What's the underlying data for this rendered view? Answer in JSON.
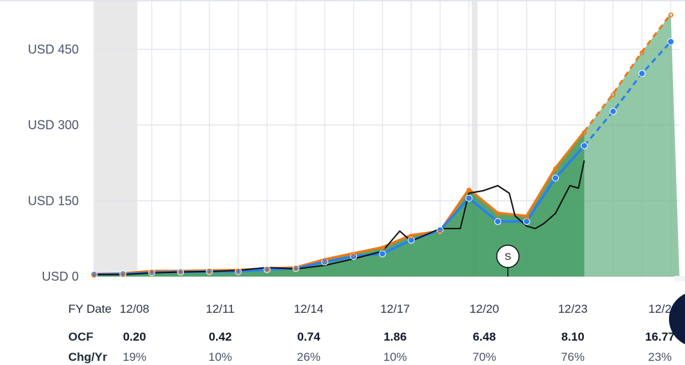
{
  "chart_data": {
    "type": "area",
    "y_axis": {
      "ticks": [
        0,
        150,
        300,
        450
      ],
      "tick_labels": [
        "USD 0",
        "USD 150",
        "USD 300",
        "USD 450"
      ],
      "range": [
        0,
        520
      ]
    },
    "x_axis": {
      "range": [
        2007,
        2027.3
      ]
    },
    "recession_bands": [
      [
        2007.0,
        2008.5
      ],
      [
        2020.1,
        2020.3
      ]
    ],
    "series": [
      {
        "key": "fair_value_orange",
        "color": "#ea7a1a",
        "points": [
          [
            2007,
            5
          ],
          [
            2008,
            6
          ],
          [
            2009,
            11
          ],
          [
            2010,
            11
          ],
          [
            2011,
            12
          ],
          [
            2012,
            13
          ],
          [
            2013,
            16
          ],
          [
            2014,
            18
          ],
          [
            2015,
            34
          ],
          [
            2016,
            46
          ],
          [
            2017,
            58
          ],
          [
            2018,
            82
          ],
          [
            2019,
            90
          ],
          [
            2020,
            173
          ],
          [
            2021,
            126
          ],
          [
            2022,
            120
          ],
          [
            2023,
            215
          ],
          [
            2024,
            287
          ]
        ],
        "estimates": [
          [
            2024,
            287
          ],
          [
            2025,
            362
          ],
          [
            2026,
            445
          ],
          [
            2027,
            520
          ]
        ]
      },
      {
        "key": "normal_blue",
        "color": "#2a7ff0",
        "points": [
          [
            2007,
            4
          ],
          [
            2008,
            5
          ],
          [
            2009,
            8
          ],
          [
            2010,
            9
          ],
          [
            2011,
            10
          ],
          [
            2012,
            10
          ],
          [
            2013,
            14
          ],
          [
            2014,
            16
          ],
          [
            2015,
            29
          ],
          [
            2016,
            40
          ],
          [
            2017,
            45
          ],
          [
            2018,
            72
          ],
          [
            2019,
            92
          ],
          [
            2020,
            155
          ],
          [
            2021,
            109
          ],
          [
            2022,
            109
          ],
          [
            2023,
            195
          ],
          [
            2024,
            259
          ]
        ],
        "estimates": [
          [
            2024,
            259
          ],
          [
            2025,
            327
          ],
          [
            2026,
            402
          ],
          [
            2027,
            465
          ]
        ]
      },
      {
        "key": "price_black",
        "color": "#111111",
        "points": [
          [
            2007,
            4
          ],
          [
            2008,
            4
          ],
          [
            2009,
            7
          ],
          [
            2010,
            9
          ],
          [
            2011,
            10
          ],
          [
            2012,
            12
          ],
          [
            2013,
            18
          ],
          [
            2014,
            15
          ],
          [
            2015,
            22
          ],
          [
            2016,
            35
          ],
          [
            2017,
            50
          ],
          [
            2017.6,
            90
          ],
          [
            2018,
            70
          ],
          [
            2019,
            95
          ],
          [
            2019.7,
            95
          ],
          [
            2020,
            165
          ],
          [
            2020.5,
            170
          ],
          [
            2021,
            180
          ],
          [
            2021.4,
            165
          ],
          [
            2021.6,
            120
          ],
          [
            2022,
            100
          ],
          [
            2022.3,
            95
          ],
          [
            2022.6,
            105
          ],
          [
            2023,
            125
          ],
          [
            2023.5,
            180
          ],
          [
            2023.8,
            175
          ],
          [
            2024,
            230
          ]
        ]
      }
    ],
    "marker_s": {
      "x": 2021.35,
      "label": "S"
    },
    "table": {
      "row_labels": [
        "FY Date",
        "OCF",
        "Chg/Yr"
      ],
      "columns": [
        {
          "date": "12/08",
          "ocf": "0.20",
          "chg": "19%"
        },
        {
          "date": "12/11",
          "ocf": "0.42",
          "chg": "10%"
        },
        {
          "date": "12/14",
          "ocf": "0.74",
          "chg": "26%"
        },
        {
          "date": "12/17",
          "ocf": "1.86",
          "chg": "10%"
        },
        {
          "date": "12/20",
          "ocf": "6.48",
          "chg": "70%"
        },
        {
          "date": "12/23",
          "ocf": "8.10",
          "chg": "76%"
        },
        {
          "date": "12/2",
          "ocf": "16.77",
          "chg": "23%"
        }
      ]
    },
    "grid": true
  }
}
